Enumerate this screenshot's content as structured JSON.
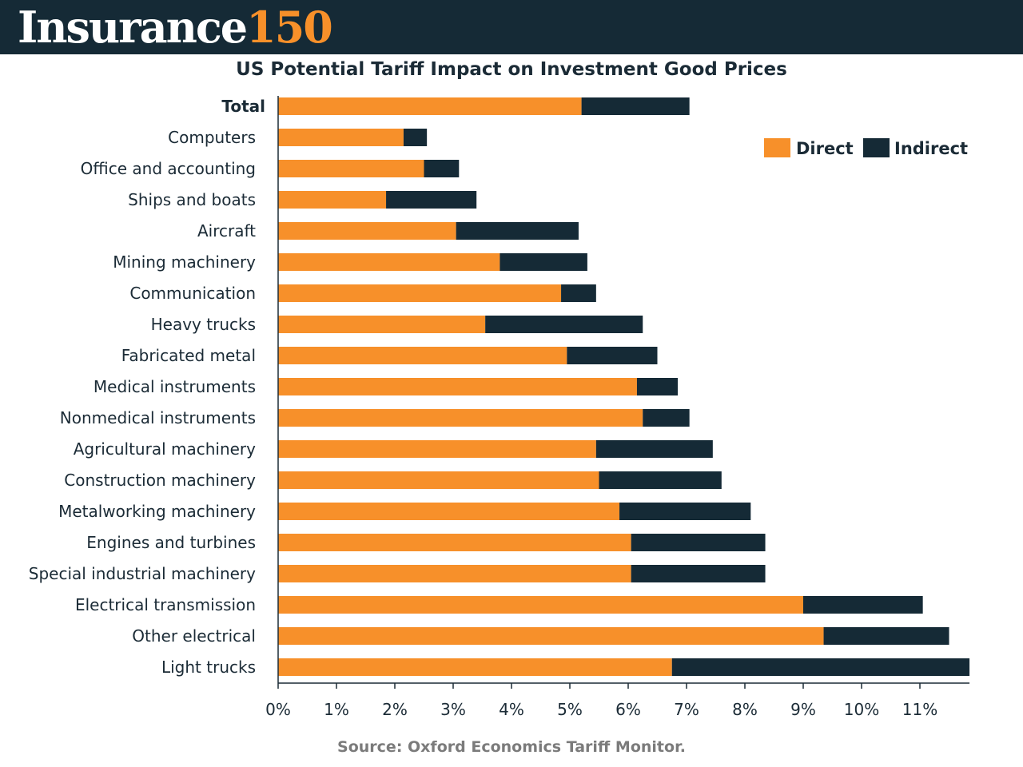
{
  "header": {
    "brand_word": "Insurance",
    "brand_number": "150"
  },
  "colors": {
    "direct": "#f7902a",
    "indirect": "#152a36",
    "header_bg": "#152a36",
    "source_text": "#7b7b7b"
  },
  "chart_data": {
    "type": "bar",
    "orientation": "horizontal",
    "stacked": true,
    "title": "US Potential Tariff Impact on Investment Good Prices",
    "source": "Source: Oxford Economics Tariff Monitor.",
    "categories": [
      "Total",
      "Computers",
      "Office and accounting",
      "Ships and boats",
      "Aircraft",
      "Mining machinery",
      "Communication",
      "Heavy trucks",
      "Fabricated metal",
      "Medical instruments",
      "Nonmedical instruments",
      "Agricultural machinery",
      "Construction machinery",
      "Metalworking machinery",
      "Engines and turbines",
      "Special industrial machinery",
      "Electrical transmission",
      "Other electrical",
      "Light trucks"
    ],
    "series": [
      {
        "name": "Direct",
        "values": [
          5.2,
          2.15,
          2.5,
          1.85,
          3.05,
          3.8,
          4.85,
          3.55,
          4.95,
          6.15,
          6.25,
          5.45,
          5.5,
          5.85,
          6.05,
          6.05,
          9.0,
          9.35,
          6.75
        ]
      },
      {
        "name": "Indirect",
        "values": [
          1.85,
          0.4,
          0.6,
          1.55,
          2.1,
          1.5,
          0.6,
          2.7,
          1.55,
          0.7,
          0.8,
          2.0,
          2.1,
          2.25,
          2.3,
          2.3,
          2.05,
          2.15,
          5.1
        ]
      }
    ],
    "x_ticks": [
      "0%",
      "1%",
      "2%",
      "3%",
      "4%",
      "5%",
      "6%",
      "7%",
      "8%",
      "9%",
      "10%",
      "11%"
    ],
    "xlim": [
      0,
      11.85
    ],
    "legend_position": "top-right",
    "grid": false
  }
}
